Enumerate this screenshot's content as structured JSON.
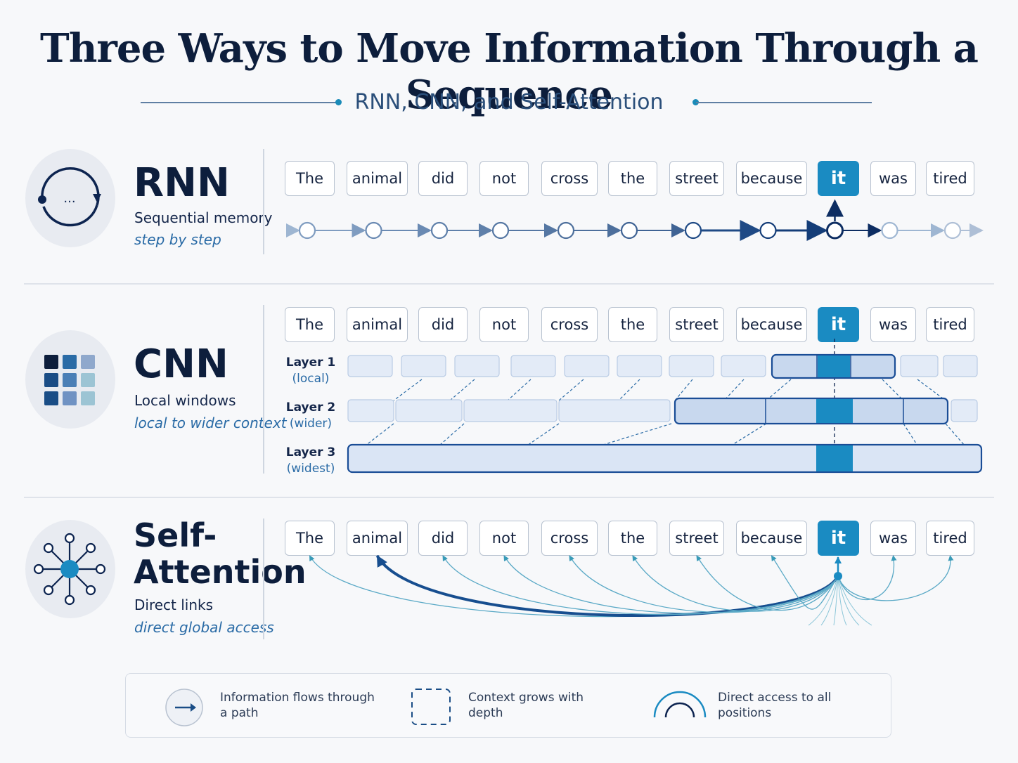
{
  "header": {
    "title": "Three Ways to Move Information Through a Sequence",
    "subtitle": "RNN, CNN, and Self-Attention"
  },
  "colors": {
    "accent": "#1a8bc2",
    "navy": "#0d1e3c",
    "blue": "#2a6ba6",
    "light_fill": "#dae5f5"
  },
  "tokens": [
    "The",
    "animal",
    "did",
    "not",
    "cross",
    "the",
    "street",
    "because",
    "it",
    "was",
    "tired"
  ],
  "focus_token": "it",
  "rows": {
    "rnn": {
      "name": "RNN",
      "description": "Sequential memory",
      "tagline": "step by step",
      "icon": "loop-cycle-icon",
      "ellipsis": "..."
    },
    "cnn": {
      "name": "CNN",
      "description": "Local windows",
      "tagline": "local to wider context",
      "icon": "grid-blocks-icon",
      "layers": [
        {
          "name": "Layer 1",
          "note": "(local)"
        },
        {
          "name": "Layer 2",
          "note": "(wider)"
        },
        {
          "name": "Layer 3",
          "note": "(widest)"
        }
      ]
    },
    "attention": {
      "name_line1": "Self-",
      "name_line2": "Attention",
      "description": "Direct links",
      "tagline": "direct global access",
      "icon": "network-hub-icon",
      "strongest_link": "animal"
    }
  },
  "legend": {
    "items": [
      {
        "icon": "arrow-circle-icon",
        "line1": "Information flows through",
        "line2": "a path"
      },
      {
        "icon": "dashed-box-icon",
        "line1": "Context grows with",
        "line2": "depth"
      },
      {
        "icon": "arcs-icon",
        "line1": "Direct access to all",
        "line2": "positions"
      }
    ]
  }
}
